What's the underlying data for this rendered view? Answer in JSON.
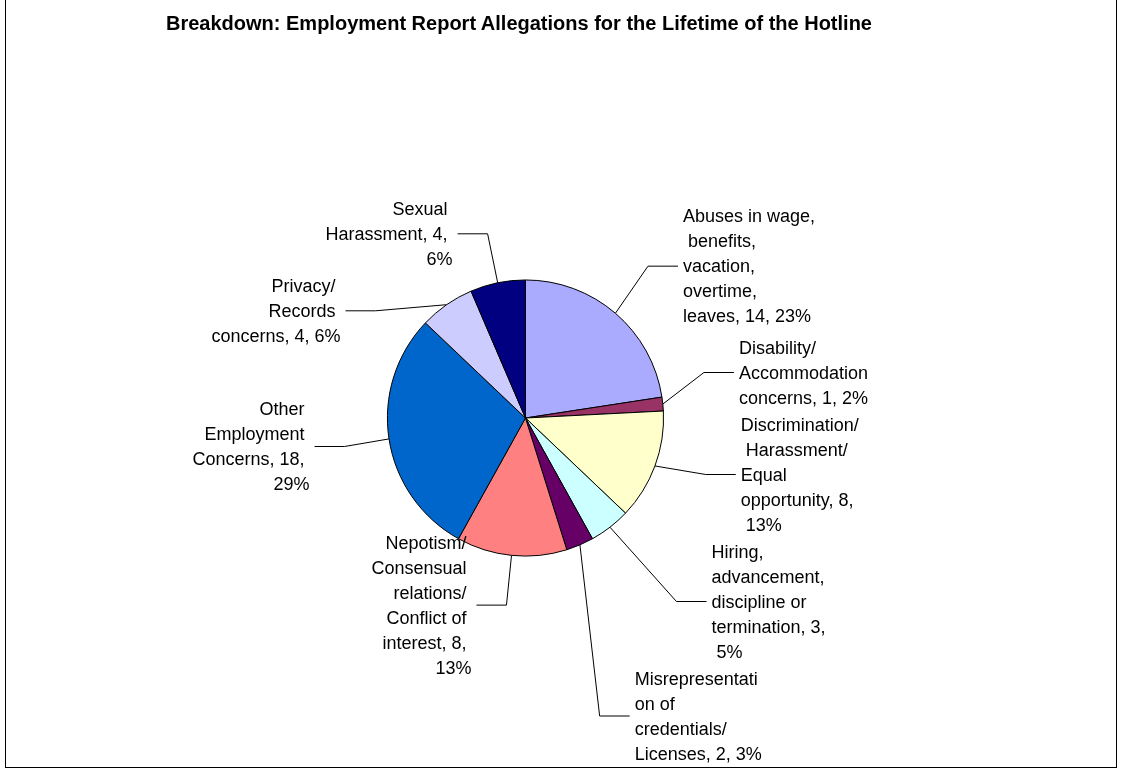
{
  "chart_data": {
    "type": "pie",
    "title": "Breakdown: Employment Report Allegations for the Lifetime of the Hotline",
    "categories": [
      "Abuses in wage, benefits, vacation, overtime, leaves",
      "Disability/ Accommodation concerns",
      "Discrimination/ Harassment/ Equal opportunity",
      "Hiring, advancement, discipline or termination",
      "Misrepresentation of credentials/ Licenses",
      "Nepotism/ Consensual relations/ Conflict of interest",
      "Other Employment Concerns",
      "Privacy/ Records concerns",
      "Sexual Harassment"
    ],
    "values": [
      14,
      1,
      8,
      3,
      2,
      8,
      18,
      4,
      4
    ],
    "value_labels": [
      "14, 23%",
      "1, 2%",
      "8, 13%",
      "3, 5%",
      "2, 3%",
      "8, 13%",
      "18, 29%",
      "4, 6%",
      "4, 6%"
    ],
    "colors": [
      "#aaaaff",
      "#993366",
      "#ffffcc",
      "#ccffff",
      "#660066",
      "#ff8080",
      "#0066cc",
      "#ccccff",
      "#000080"
    ],
    "legend": false
  }
}
